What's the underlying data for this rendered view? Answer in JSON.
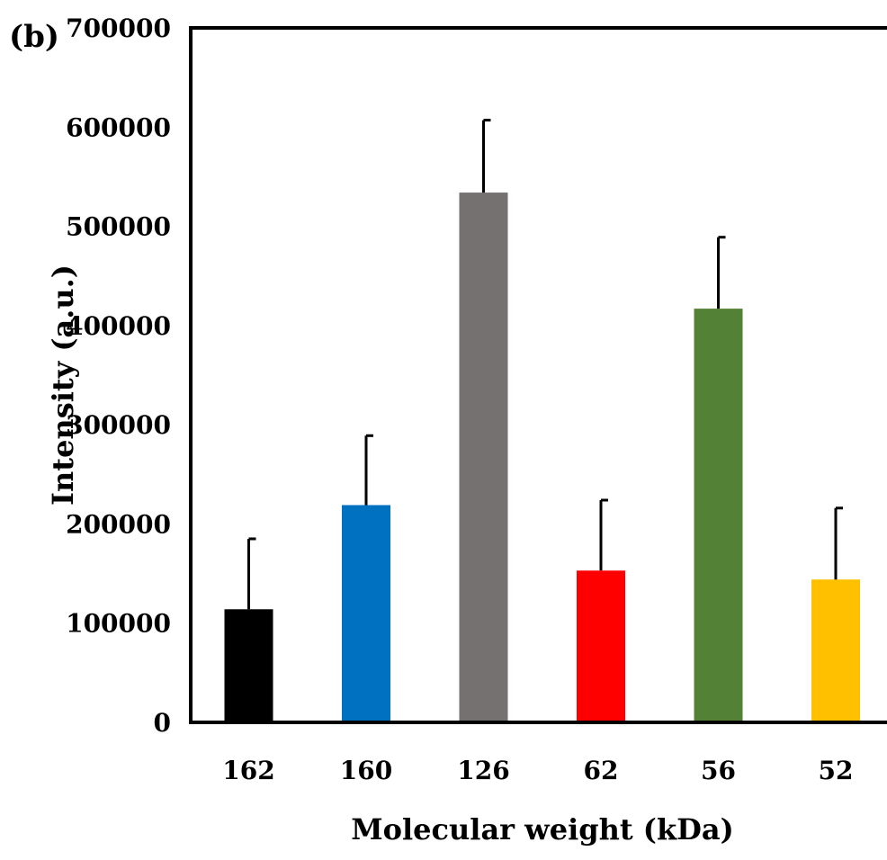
{
  "panel_label": "(b)",
  "chart_data": {
    "type": "bar",
    "title": "",
    "xlabel": "Molecular weight (kDa)",
    "ylabel": "Intensity (a.u.)",
    "ylim": [
      0,
      700000
    ],
    "yticks": [
      0,
      100000,
      200000,
      300000,
      400000,
      500000,
      600000,
      700000
    ],
    "ytick_labels": [
      "0",
      "100000",
      "200000",
      "300000",
      "400000",
      "500000",
      "600000",
      "700000"
    ],
    "grid": false,
    "categories": [
      "162",
      "160",
      "126",
      "62",
      "56",
      "52"
    ],
    "values": [
      114000,
      219000,
      534000,
      153000,
      417000,
      144000
    ],
    "errors": [
      71000,
      70000,
      73000,
      71000,
      72000,
      72000
    ],
    "colors": [
      "#000000",
      "#0070c0",
      "#767171",
      "#ff0000",
      "#538135",
      "#ffc000"
    ],
    "error_bar_color": "#000000"
  }
}
